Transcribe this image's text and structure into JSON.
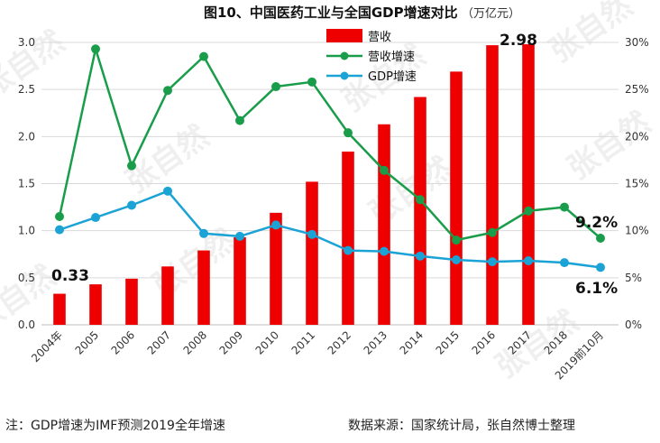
{
  "header": {
    "title": "图10、中国医药工业与全国GDP增速对比",
    "unit": "（万亿元）"
  },
  "footer": {
    "note": "注：GDP增速为IMF预测2019全年增速",
    "source": "数据来源：国家统计局，张自然博士整理"
  },
  "watermark": "张自然",
  "colors": {
    "revenue": "#ee0000",
    "revenue_growth": "#1a9d4a",
    "gdp_growth": "#1ba3d6",
    "grid": "#d9d9d9"
  },
  "chart_data": {
    "type": "bar",
    "categories": [
      "2004年",
      "2005",
      "2006",
      "2007",
      "2008",
      "2009",
      "2010",
      "2011",
      "2012",
      "2013",
      "2014",
      "2015",
      "2016",
      "2017",
      "2018",
      "2019前10月"
    ],
    "left_axis": {
      "ylim": [
        0,
        3.0
      ],
      "ticks": [
        "0.0",
        "0.5",
        "1.0",
        "1.5",
        "2.0",
        "2.5",
        "3.0"
      ]
    },
    "right_axis": {
      "ylim": [
        0,
        30
      ],
      "ticks": [
        "0%",
        "5%",
        "10%",
        "15%",
        "20%",
        "25%",
        "30%"
      ]
    },
    "series": [
      {
        "name": "营收",
        "kind": "bar",
        "axis": "left",
        "values": [
          0.33,
          0.43,
          0.49,
          0.62,
          0.79,
          0.93,
          1.19,
          1.52,
          1.84,
          2.13,
          2.42,
          2.69,
          2.97,
          2.98,
          null,
          null
        ]
      },
      {
        "name": "营收增速",
        "kind": "line",
        "axis": "right",
        "values": [
          11.5,
          29.3,
          16.9,
          24.9,
          28.5,
          21.7,
          25.3,
          25.8,
          20.4,
          16.4,
          13.3,
          9.0,
          9.8,
          12.1,
          12.5,
          9.2
        ]
      },
      {
        "name": "GDP增速",
        "kind": "line",
        "axis": "right",
        "values": [
          10.1,
          11.4,
          12.7,
          14.2,
          9.7,
          9.4,
          10.6,
          9.6,
          7.9,
          7.8,
          7.3,
          6.9,
          6.7,
          6.8,
          6.6,
          6.1
        ]
      }
    ],
    "annotations": [
      "0.33",
      "2.98",
      "9.2%",
      "6.1%"
    ],
    "grid": "horizontal",
    "legend_position": "top-center"
  }
}
